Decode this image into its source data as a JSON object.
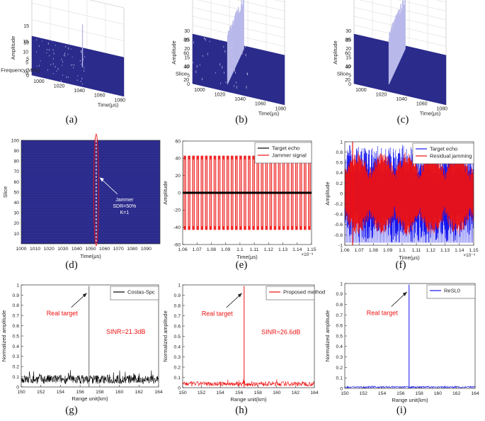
{
  "figure": {
    "captions": [
      "(a)",
      "(b)",
      "(c)",
      "(d)",
      "(e)",
      "(f)",
      "(g)",
      "(h)",
      "(i)"
    ]
  },
  "colors": {
    "navy": "#2b2b8c",
    "spike": "#b8b8ea",
    "red": "#ee1111",
    "blue": "#1414ee",
    "black": "#000000",
    "gray_line": "#777777"
  },
  "chart_data": [
    {
      "id": "a",
      "type": "surface3d",
      "zlabel": "Amplitude",
      "xlabel": "Frequency(MHz)",
      "ylabel": "Time(μs)",
      "z_ticks": [
        "0",
        "5",
        "10",
        "15"
      ],
      "x_ticks": [
        "15",
        "10",
        "5",
        "0"
      ],
      "y_ticks": [
        "1000",
        "1020",
        "1040",
        "1060",
        "1080"
      ],
      "zlim": [
        0,
        15
      ],
      "peak_value": 13
    },
    {
      "id": "b",
      "type": "surface3d",
      "zlabel": "Amplitude",
      "xlabel": "Slice",
      "ylabel": "Time(μs)",
      "z_ticks": [
        "0",
        "5",
        "10",
        "15",
        "20",
        "25",
        "30"
      ],
      "x_ticks": [
        "80",
        "60",
        "40",
        "20"
      ],
      "y_ticks": [
        "1000",
        "1020",
        "1040",
        "1060",
        "1080"
      ],
      "zlim": [
        0,
        32
      ],
      "peak_value": 31
    },
    {
      "id": "c",
      "type": "surface3d",
      "zlabel": "Amplitude",
      "xlabel": "Slice",
      "ylabel": "Time(μs)",
      "z_ticks": [
        "0",
        "5",
        "10",
        "15",
        "20",
        "25",
        "30"
      ],
      "x_ticks": [
        "80",
        "60",
        "40",
        "20"
      ],
      "y_ticks": [
        "1000",
        "1020",
        "1040",
        "1060",
        "1080"
      ],
      "zlim": [
        0,
        32
      ],
      "peak_value": 31
    },
    {
      "id": "d",
      "type": "heatmap",
      "xlabel": "Time(μs)",
      "ylabel": "Slice",
      "xlim": [
        1000,
        1100
      ],
      "ylim": [
        0,
        100
      ],
      "x_ticks": [
        1000,
        1010,
        1020,
        1030,
        1040,
        1050,
        1060,
        1070,
        1080,
        1090
      ],
      "y_ticks": [
        10,
        20,
        30,
        40,
        50,
        60,
        70,
        80,
        90,
        100
      ],
      "jammer_x": 1054,
      "annotation": [
        "Jammer",
        "SDR=50%",
        "K=1"
      ]
    },
    {
      "id": "e",
      "type": "line",
      "xlabel": "Time(μs)",
      "ylabel": "Amplitude",
      "x_exponent": "×10⁻³",
      "xlim": [
        1.06,
        1.15
      ],
      "ylim": [
        -60,
        60
      ],
      "x_ticks": [
        "1.06",
        "1.07",
        "1.08",
        "1.09",
        "1.1",
        "1.11",
        "1.12",
        "1.13",
        "1.14",
        "1.15"
      ],
      "y_ticks": [
        "-60",
        "-40",
        "-20",
        "0",
        "20",
        "40",
        "60"
      ],
      "legend": [
        "Target echo",
        "Jammer signal"
      ],
      "jammer_amplitude": 43,
      "bursts": 30
    },
    {
      "id": "f",
      "type": "line",
      "xlabel": "Time(μs)",
      "ylabel": "Amplitude",
      "x_exponent": "×10⁻³",
      "xlim": [
        1.06,
        1.15
      ],
      "ylim": [
        -1.05,
        1.05
      ],
      "x_ticks": [
        "1.06",
        "1.07",
        "1.08",
        "1.09",
        "1.1",
        "1.11",
        "1.12",
        "1.13",
        "1.14",
        "1.15"
      ],
      "y_ticks": [
        "-1",
        "-0.8",
        "-0.6",
        "-0.4",
        "-0.2",
        "0",
        "0.2",
        "0.4",
        "0.6",
        "0.8",
        "1"
      ],
      "legend": [
        "Target echo",
        "Residual jamming"
      ]
    },
    {
      "id": "g",
      "type": "line",
      "xlabel": "Range unit(km)",
      "ylabel": "Normalized amplitude",
      "xlim": [
        150,
        165
      ],
      "ylim": [
        0,
        1
      ],
      "x_ticks": [
        "150",
        "152",
        "154",
        "156",
        "158",
        "160",
        "162",
        "164"
      ],
      "y_ticks": [
        "0",
        "0.1",
        "0.2",
        "0.3",
        "0.4",
        "0.5",
        "0.6",
        "0.7",
        "0.8",
        "0.9",
        "1"
      ],
      "legend": [
        "Costas-Spc"
      ],
      "target_label": "Real target",
      "sinr_label": "SINR=21.3dB",
      "peak_x": 157.4,
      "noise_level": 0.12
    },
    {
      "id": "h",
      "type": "line",
      "xlabel": "Range unit(km)",
      "ylabel": "Normalized amplitude",
      "xlim": [
        150,
        165
      ],
      "ylim": [
        0,
        1
      ],
      "x_ticks": [
        "150",
        "152",
        "154",
        "156",
        "158",
        "160",
        "162",
        "164"
      ],
      "y_ticks": [
        "0",
        "0.1",
        "0.2",
        "0.3",
        "0.4",
        "0.5",
        "0.6",
        "0.7",
        "0.8",
        "0.9",
        "1"
      ],
      "legend": [
        "Proposed method"
      ],
      "target_label": "Real target",
      "sinr_label": "SINR=26.6dB",
      "peak_x": 157.0,
      "noise_level": 0.06
    },
    {
      "id": "i",
      "type": "line",
      "xlabel": "Range unit(km)",
      "ylabel": "Normalized amplitude",
      "xlim": [
        150,
        165
      ],
      "ylim": [
        0,
        1
      ],
      "x_ticks": [
        "150",
        "152",
        "154",
        "156",
        "158",
        "160",
        "162",
        "164"
      ],
      "y_ticks": [
        "0",
        "0.1",
        "0.2",
        "0.3",
        "0.4",
        "0.5",
        "0.6",
        "0.7",
        "0.8",
        "0.9",
        "1"
      ],
      "legend": [
        "ReSL0"
      ],
      "target_label": "Real target",
      "peak_x": 157.4,
      "noise_level": 0.02
    }
  ]
}
